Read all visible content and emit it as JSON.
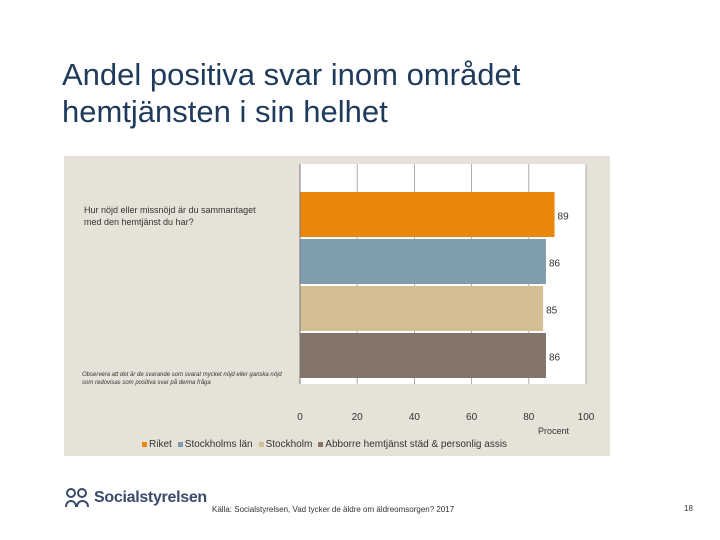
{
  "title": {
    "line1": "Andel positiva svar inom området",
    "line2": "hemtjänsten i sin helhet"
  },
  "chart_data": {
    "type": "bar",
    "orientation": "horizontal",
    "question": "Hur nöjd eller missnöjd är du sammantaget med den hemtjänst du har?",
    "note": "Observera att det är de svarande som svarat mycket nöjd eller ganska nöjd som redovisas som positiva svar på denna fråga",
    "series": [
      {
        "name": "Riket",
        "value": 89,
        "label": "89",
        "color": "#e8870a"
      },
      {
        "name": "Stockholms län",
        "value": 86,
        "label": "86",
        "color": "#7f9dac"
      },
      {
        "name": "Stockholm",
        "value": 85,
        "label": "85",
        "color": "#d4bf94"
      },
      {
        "name": "Abborre hemtjänst städ & personlig assis",
        "value": 86,
        "label": "86",
        "color": "#85746a"
      }
    ],
    "xlim": [
      0,
      100
    ],
    "xticks": [
      "0",
      "20",
      "40",
      "60",
      "80",
      "100"
    ],
    "xlabel": "Procent",
    "grid": true,
    "legend_placement": "bottom"
  },
  "footer": {
    "logo_text": "Socialstyrelsen",
    "source": "Källa: Socialstyrelsen, Vad tycker de äldre om äldreomsorgen? 2017",
    "page_number": "18"
  }
}
